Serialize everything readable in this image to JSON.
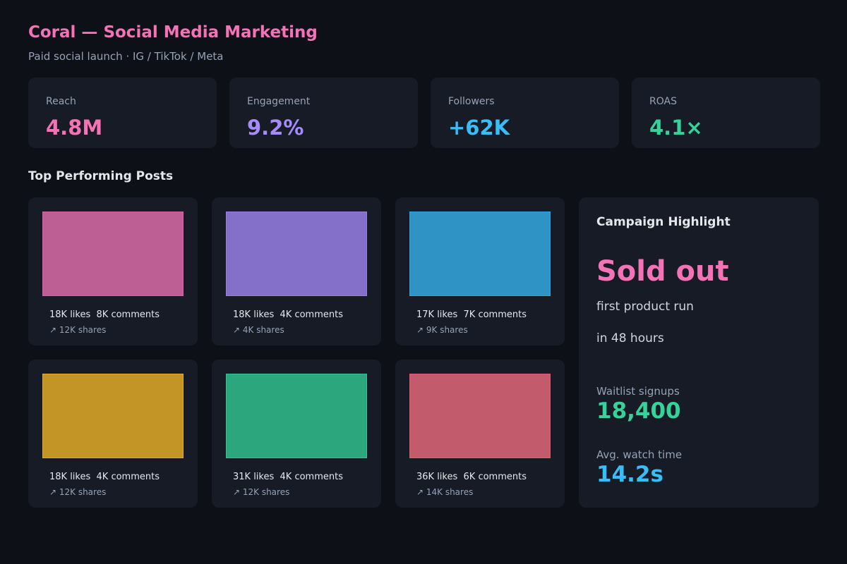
{
  "header": {
    "title": "Coral — Social Media Marketing",
    "subtitle": "Paid social launch · IG / TikTok / Meta"
  },
  "kpis": [
    {
      "label": "Reach",
      "value": "4.8M",
      "color": "#f472b6"
    },
    {
      "label": "Engagement",
      "value": "9.2%",
      "color": "#a78bfa"
    },
    {
      "label": "Followers",
      "value": "+62K",
      "color": "#38bdf8"
    },
    {
      "label": "ROAS",
      "value": "4.1×",
      "color": "#34d399"
    }
  ],
  "posts_section": {
    "title": "Top Performing Posts"
  },
  "posts": [
    {
      "stats": "18K likes  8K comments",
      "shares": "↗ 12K shares",
      "color": "#bd5f94",
      "border": "#e25aa4"
    },
    {
      "stats": "18K likes  4K comments",
      "shares": "↗ 4K shares",
      "color": "#8470c8",
      "border": "#9b7be6"
    },
    {
      "stats": "17K likes  7K comments",
      "shares": "↗ 9K shares",
      "color": "#3093c6",
      "border": "#29a8e0"
    },
    {
      "stats": "18K likes  4K comments",
      "shares": "↗ 12K shares",
      "color": "#c29526",
      "border": "#e0ad22"
    },
    {
      "stats": "31K likes  4K comments",
      "shares": "↗ 12K shares",
      "color": "#2ca67d",
      "border": "#2ec594"
    },
    {
      "stats": "36K likes  6K comments",
      "shares": "↗ 14K shares",
      "color": "#c25c6c",
      "border": "#e25a6e"
    }
  ],
  "highlight": {
    "title": "Campaign Highlight",
    "headline": "Sold out",
    "line1": "first product run",
    "line2": "in 48 hours",
    "metric1_label": "Waitlist signups",
    "metric1_value": "18,400",
    "metric1_color": "#34d399",
    "metric2_label": "Avg. watch time",
    "metric2_value": "14.2s",
    "metric2_color": "#38bdf8"
  }
}
